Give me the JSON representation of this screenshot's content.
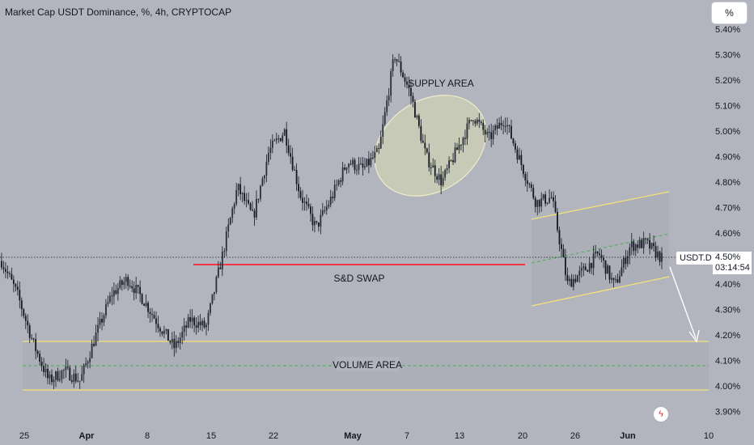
{
  "title": "Market Cap USDT Dominance, %, 4h, CRYPTOCAP",
  "scale_button": "%",
  "price_label": "USDT.D",
  "last_value": "4.50%",
  "countdown": "03:14:54",
  "annotations": {
    "supply_area": "SUPPLY AREA",
    "sd_swap": "S&D SWAP",
    "volume_area": "VOLUME AREA"
  },
  "colors": {
    "background": "#b2b5be",
    "candles": "#131722",
    "swap_line": "#f23645",
    "zone_lines": "#f5e27a",
    "dashed_mid": "#4caf50",
    "ellipse_fill": "#c9cdb7"
  },
  "icon": "flash-icon",
  "chart_data": {
    "type": "candlestick",
    "title": "Market Cap USDT Dominance, %, 4h, CRYPTOCAP",
    "y_axis": {
      "side": "right",
      "unit": "%",
      "ticks": [
        "5.40%",
        "5.30%",
        "5.20%",
        "5.10%",
        "5.00%",
        "4.90%",
        "4.80%",
        "4.70%",
        "4.60%",
        "4.50%",
        "4.40%",
        "4.30%",
        "4.20%",
        "4.10%",
        "4.00%",
        "3.90%"
      ],
      "range": [
        3.86,
        5.47
      ]
    },
    "x_axis": {
      "ticks": [
        "25",
        "Apr",
        "8",
        "15",
        "22",
        "May",
        "7",
        "13",
        "20",
        "26",
        "Jun",
        "10"
      ]
    },
    "last_value": 4.5,
    "levels": {
      "sd_swap": 4.475,
      "volume_area_top": 4.17,
      "volume_area_mid": 4.075,
      "volume_area_bottom": 3.98
    },
    "close_path": [
      [
        "25",
        4.49
      ],
      [
        "25",
        4.36
      ],
      [
        "25",
        4.17
      ],
      [
        "25",
        4.02
      ],
      [
        "Apr",
        4.06
      ],
      [
        "Apr",
        4.02
      ],
      [
        "Apr",
        4.2
      ],
      [
        "Apr",
        4.36
      ],
      [
        "Apr",
        4.42
      ],
      [
        "Apr",
        4.34
      ],
      [
        "8",
        4.24
      ],
      [
        "8",
        4.15
      ],
      [
        "8",
        4.26
      ],
      [
        "8",
        4.23
      ],
      [
        "8",
        4.5
      ],
      [
        "15",
        4.78
      ],
      [
        "15",
        4.66
      ],
      [
        "15",
        4.92
      ],
      [
        "15",
        5.0
      ],
      [
        "22",
        4.75
      ],
      [
        "22",
        4.62
      ],
      [
        "22",
        4.74
      ],
      [
        "22",
        4.88
      ],
      [
        "22",
        4.85
      ],
      [
        "May",
        4.92
      ],
      [
        "May",
        5.3
      ],
      [
        "May",
        5.15
      ],
      [
        "May",
        4.9
      ],
      [
        "7",
        4.8
      ],
      [
        "7",
        4.93
      ],
      [
        "13",
        5.06
      ],
      [
        "13",
        4.97
      ],
      [
        "13",
        5.05
      ],
      [
        "13",
        4.88
      ],
      [
        "20",
        4.72
      ],
      [
        "20",
        4.74
      ],
      [
        "20",
        4.4
      ],
      [
        "20",
        4.45
      ],
      [
        "26",
        4.52
      ],
      [
        "26",
        4.39
      ],
      [
        "26",
        4.55
      ],
      [
        "Jun",
        4.56
      ],
      [
        "Jun",
        4.5
      ]
    ],
    "grid": false,
    "legend": "none"
  }
}
